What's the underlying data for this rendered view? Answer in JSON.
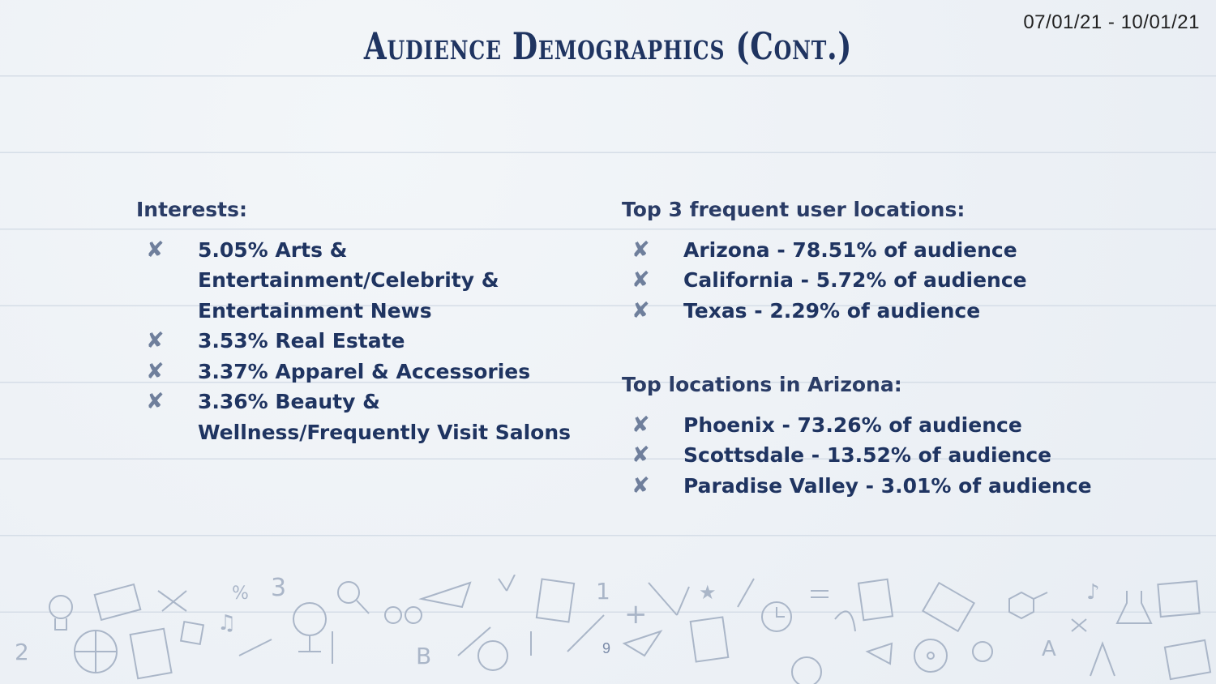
{
  "header": {
    "date_range": "07/01/21 - 10/01/21",
    "title": "Audience Demographics (Cont.)"
  },
  "interests": {
    "heading": "Interests:",
    "items": [
      "5.05% Arts & Entertainment/Celebrity & Entertainment News",
      "3.53% Real Estate",
      "3.37% Apparel & Accessories",
      "3.36% Beauty & Wellness/Frequently Visit Salons"
    ]
  },
  "top_locations": {
    "heading": "Top 3 frequent user locations:",
    "items": [
      "Arizona - 78.51% of audience",
      "California - 5.72% of audience",
      "Texas - 2.29% of audience"
    ]
  },
  "arizona_locations": {
    "heading": "Top locations in Arizona:",
    "items": [
      "Phoenix - 73.26% of audience",
      "Scottsdale - 13.52% of audience",
      "Paradise Valley - 3.01% of audience"
    ]
  },
  "bullet_symbol": "✘",
  "footer": {
    "page_number": "9"
  },
  "doodle_glyphs": [
    "3",
    "1",
    "2",
    "B",
    "A",
    "%",
    "♫",
    "♪",
    "★",
    "+"
  ]
}
